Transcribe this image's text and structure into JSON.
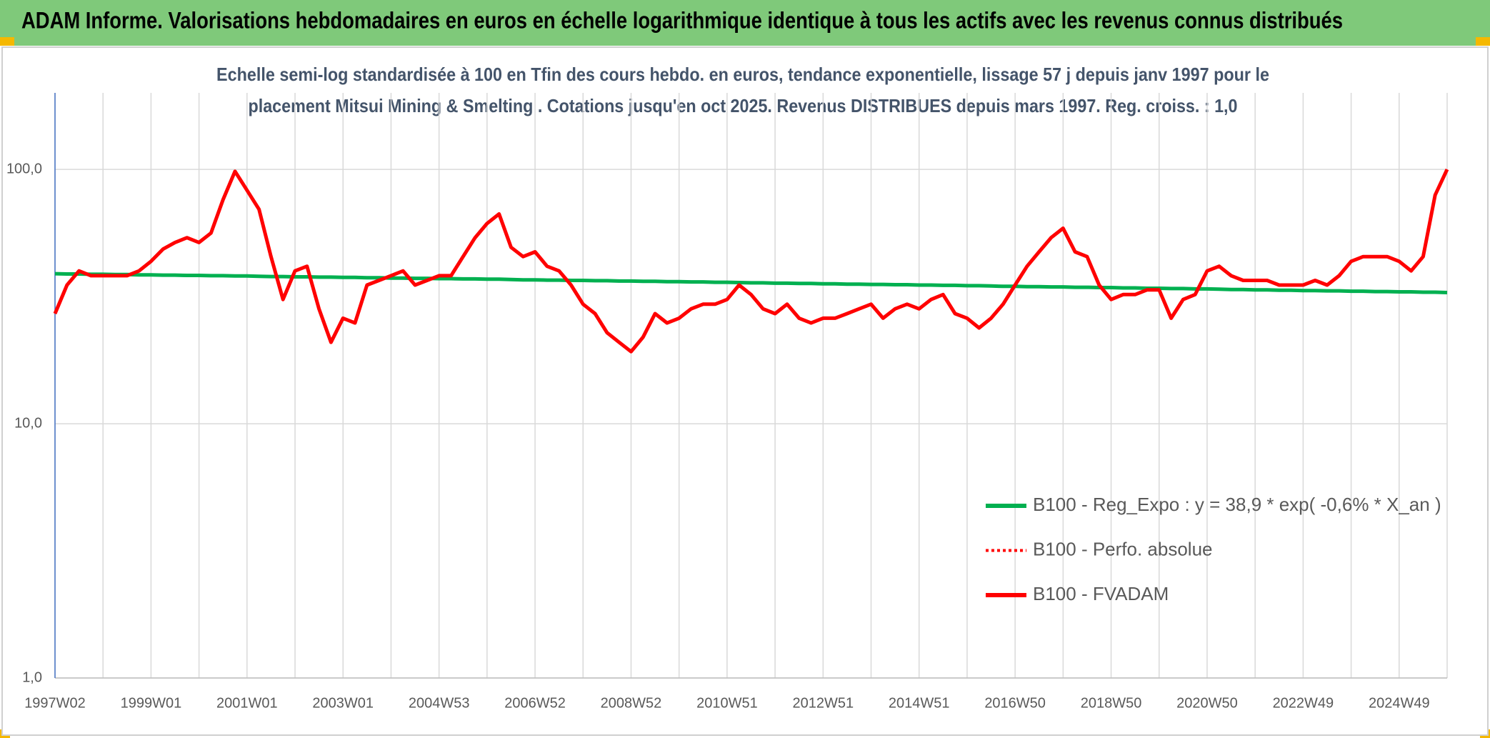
{
  "chart_data": {
    "type": "line",
    "title": "ADAM Informe. Valorisations hebdomadaires en euros en échelle logarithmique identique à tous les actifs avec les revenus connus distribués",
    "subtitle": [
      "Echelle semi-log standardisée à 100 en Tfin des cours hebdo. en euros, tendance exponentielle, lissage 57 j depuis janv 1997 pour le",
      "placement Mitsui Mining & Smelting . Cotations jusqu'en oct 2025. Revenus DISTRIBUES depuis mars 1997. Reg. croiss. : 1,0"
    ],
    "categories": [
      "1997W02",
      null,
      null,
      null,
      null,
      null,
      null,
      null,
      "1999W01",
      null,
      null,
      null,
      null,
      null,
      null,
      null,
      "2001W01",
      null,
      null,
      null,
      null,
      null,
      null,
      null,
      "2003W01",
      null,
      null,
      null,
      null,
      null,
      null,
      null,
      "2004W53",
      null,
      null,
      null,
      null,
      null,
      null,
      null,
      "2006W52",
      null,
      null,
      null,
      null,
      null,
      null,
      null,
      "2008W52",
      null,
      null,
      null,
      null,
      null,
      null,
      null,
      "2010W51",
      null,
      null,
      null,
      null,
      null,
      null,
      null,
      "2012W51",
      null,
      null,
      null,
      null,
      null,
      null,
      null,
      "2014W51",
      null,
      null,
      null,
      null,
      null,
      null,
      null,
      "2016W50",
      null,
      null,
      null,
      null,
      null,
      null,
      null,
      "2018W50",
      null,
      null,
      null,
      null,
      null,
      null,
      null,
      "2020W50",
      null,
      null,
      null,
      null,
      null,
      null,
      null,
      "2022W49",
      null,
      null,
      null,
      null,
      null,
      null,
      null,
      "2024W49",
      null,
      null,
      null,
      null
    ],
    "series": [
      {
        "name": "B100 - Reg_Expo : y = 38,9 * exp( -0,6% *  X_an )",
        "color": "#00b050",
        "style": "solid",
        "values": [
          38.9,
          38.8,
          38.8,
          38.7,
          38.7,
          38.6,
          38.6,
          38.5,
          38.5,
          38.4,
          38.4,
          38.3,
          38.3,
          38.2,
          38.2,
          38.1,
          38.1,
          38.0,
          37.9,
          37.9,
          37.8,
          37.8,
          37.7,
          37.7,
          37.6,
          37.6,
          37.5,
          37.5,
          37.4,
          37.4,
          37.3,
          37.3,
          37.2,
          37.2,
          37.1,
          37.1,
          37.0,
          37.0,
          36.9,
          36.8,
          36.8,
          36.7,
          36.7,
          36.6,
          36.6,
          36.5,
          36.5,
          36.4,
          36.4,
          36.3,
          36.3,
          36.2,
          36.2,
          36.1,
          36.1,
          36.0,
          36.0,
          35.9,
          35.8,
          35.8,
          35.7,
          35.7,
          35.6,
          35.6,
          35.5,
          35.5,
          35.4,
          35.4,
          35.3,
          35.3,
          35.2,
          35.2,
          35.1,
          35.1,
          35.0,
          35.0,
          34.9,
          34.9,
          34.8,
          34.7,
          34.7,
          34.6,
          34.6,
          34.5,
          34.5,
          34.4,
          34.4,
          34.3,
          34.3,
          34.2,
          34.2,
          34.1,
          34.1,
          34.0,
          34.0,
          33.9,
          33.9,
          33.8,
          33.7,
          33.7,
          33.6,
          33.6,
          33.5,
          33.5,
          33.4,
          33.4,
          33.3,
          33.3,
          33.2,
          33.2,
          33.1,
          33.1,
          33.0,
          33.0,
          32.9,
          32.9,
          32.8
        ]
      },
      {
        "name": "B100 - Perfo. absolue",
        "color": "#ff0000",
        "style": "dotted",
        "values": [
          27.1,
          35.1,
          39.9,
          38.2,
          38.2,
          38.2,
          38.2,
          39.9,
          43.5,
          48.6,
          51.6,
          53.9,
          51.6,
          56.2,
          76.0,
          98.3,
          82.8,
          69.7,
          45.4,
          30.8,
          39.9,
          41.6,
          28.3,
          20.9,
          26.0,
          24.9,
          35.1,
          36.6,
          38.2,
          39.9,
          35.1,
          36.6,
          38.2,
          38.2,
          45.4,
          53.9,
          61.3,
          66.8,
          49.4,
          45.4,
          47.4,
          41.6,
          39.9,
          35.1,
          29.5,
          27.1,
          22.8,
          20.9,
          19.2,
          21.9,
          27.1,
          24.9,
          26.0,
          28.3,
          29.5,
          29.5,
          30.8,
          35.1,
          32.2,
          28.3,
          27.1,
          29.5,
          26.0,
          24.9,
          26.0,
          26.0,
          27.1,
          28.3,
          29.5,
          26.0,
          28.3,
          29.5,
          28.3,
          30.8,
          32.2,
          27.1,
          26.0,
          23.8,
          26.0,
          29.5,
          35.1,
          41.6,
          47.4,
          53.9,
          58.7,
          47.4,
          45.4,
          35.1,
          30.8,
          32.2,
          32.2,
          33.6,
          33.6,
          26.0,
          30.8,
          32.2,
          39.9,
          41.6,
          38.2,
          36.6,
          36.6,
          36.6,
          35.1,
          35.1,
          35.1,
          36.6,
          35.1,
          38.2,
          43.5,
          45.4,
          45.4,
          45.4,
          43.5,
          39.9,
          45.4,
          79.3,
          100
        ]
      },
      {
        "name": "B100 - FVADAM",
        "color": "#ff0000",
        "style": "solid",
        "values": [
          27.1,
          35.1,
          39.9,
          38.2,
          38.2,
          38.2,
          38.2,
          39.9,
          43.5,
          48.6,
          51.6,
          53.9,
          51.6,
          56.2,
          76.0,
          98.3,
          82.8,
          69.7,
          45.4,
          30.8,
          39.9,
          41.6,
          28.3,
          20.9,
          26.0,
          24.9,
          35.1,
          36.6,
          38.2,
          39.9,
          35.1,
          36.6,
          38.2,
          38.2,
          45.4,
          53.9,
          61.3,
          66.8,
          49.4,
          45.4,
          47.4,
          41.6,
          39.9,
          35.1,
          29.5,
          27.1,
          22.8,
          20.9,
          19.2,
          21.9,
          27.1,
          24.9,
          26.0,
          28.3,
          29.5,
          29.5,
          30.8,
          35.1,
          32.2,
          28.3,
          27.1,
          29.5,
          26.0,
          24.9,
          26.0,
          26.0,
          27.1,
          28.3,
          29.5,
          26.0,
          28.3,
          29.5,
          28.3,
          30.8,
          32.2,
          27.1,
          26.0,
          23.8,
          26.0,
          29.5,
          35.1,
          41.6,
          47.4,
          53.9,
          58.7,
          47.4,
          45.4,
          35.1,
          30.8,
          32.2,
          32.2,
          33.6,
          33.6,
          26.0,
          30.8,
          32.2,
          39.9,
          41.6,
          38.2,
          36.6,
          36.6,
          36.6,
          35.1,
          35.1,
          35.1,
          36.6,
          35.1,
          38.2,
          43.5,
          45.4,
          45.4,
          45.4,
          43.5,
          39.9,
          45.4,
          79.3,
          100
        ]
      }
    ],
    "ylim": [
      1,
      200
    ],
    "yticks": [
      {
        "value": 1,
        "label": "1,0"
      },
      {
        "value": 10,
        "label": "10,0"
      },
      {
        "value": 100,
        "label": "100,0"
      }
    ],
    "log_scale": true,
    "grid": true,
    "legend": "right"
  }
}
